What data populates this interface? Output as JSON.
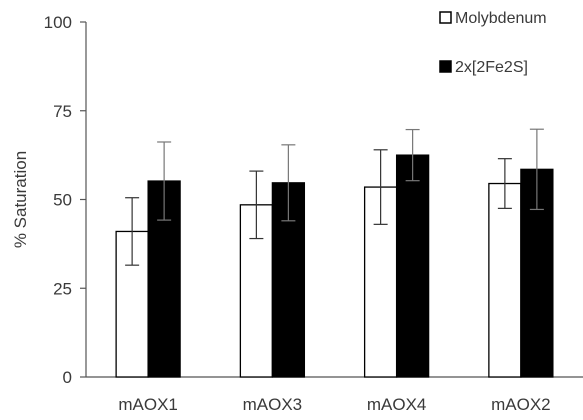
{
  "chart_data": {
    "type": "bar",
    "categories": [
      "mAOX1",
      "mAOX3",
      "mAOX4",
      "mAOX2"
    ],
    "series": [
      {
        "name": "Molybdenum",
        "values": [
          41,
          48.5,
          53.5,
          54.5
        ],
        "error": [
          9.5,
          9.5,
          10.5,
          7
        ],
        "color": "#ffffff"
      },
      {
        "name": "2x[2Fe2S]",
        "values": [
          55.2,
          54.7,
          62.5,
          58.5
        ],
        "error": [
          11,
          10.7,
          7.2,
          11.3
        ],
        "color": "#000000"
      }
    ],
    "title": "",
    "xlabel": "",
    "ylabel": "% Saturation",
    "ylim": [
      0,
      100
    ],
    "yticks": [
      "0",
      "25",
      "50",
      "75",
      "100"
    ],
    "grid": false,
    "legend": "top-right"
  }
}
